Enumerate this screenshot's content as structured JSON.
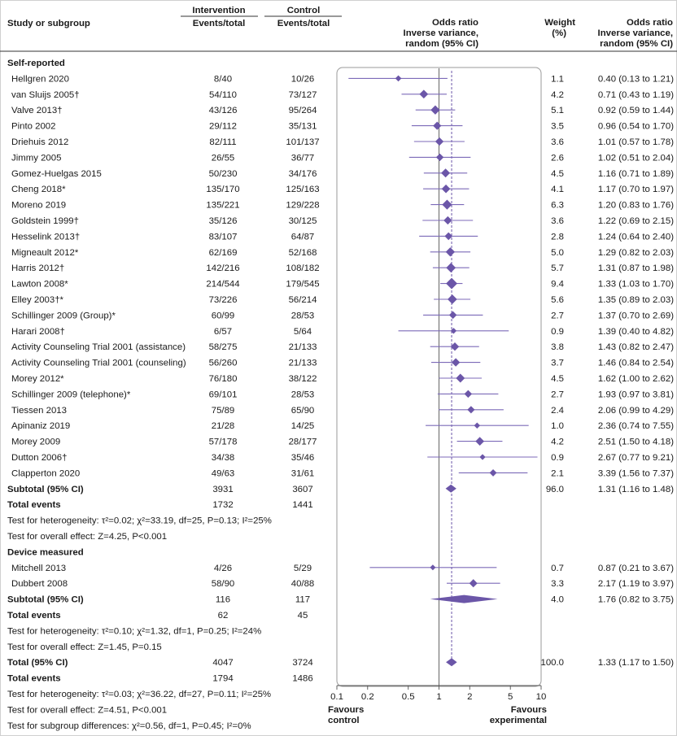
{
  "header": {
    "study": "Study or subgroup",
    "intervention": "Intervention",
    "intervention_sub": "Events/total",
    "control": "Control",
    "control_sub": "Events/total",
    "or_plot": [
      "Odds ratio",
      "Inverse variance,",
      "random (95% CI)"
    ],
    "weight": [
      "Weight",
      "(%)"
    ],
    "or_text": [
      "Odds ratio",
      "Inverse variance,",
      "random (95% CI)"
    ]
  },
  "axis": {
    "ticks": [
      "0.1",
      "0.2",
      "0.5",
      "1",
      "2",
      "5",
      "10"
    ],
    "favours_left": [
      "Favours",
      "control"
    ],
    "favours_right": [
      "Favours",
      "experimental"
    ]
  },
  "colors": {
    "mark": "#6b56a8",
    "line": "#7c6ab8",
    "frame": "#9a9a9a",
    "axis": "#555555"
  },
  "chart_data": {
    "type": "forest",
    "scale": "log",
    "xlim": [
      0.1,
      10
    ],
    "null_value": 1,
    "rows": [
      {
        "kind": "group",
        "label": "Self-reported"
      },
      {
        "kind": "study",
        "label": "Hellgren 2020",
        "int": "8/40",
        "ctl": "10/26",
        "or": 0.4,
        "lo": 0.13,
        "hi": 1.21,
        "w": "1.1",
        "ci": "0.40 (0.13 to 1.21)"
      },
      {
        "kind": "study",
        "label": "van Sluijs 2005†",
        "int": "54/110",
        "ctl": "73/127",
        "or": 0.71,
        "lo": 0.43,
        "hi": 1.19,
        "w": "4.2",
        "ci": "0.71 (0.43 to 1.19)"
      },
      {
        "kind": "study",
        "label": "Valve 2013†",
        "int": "43/126",
        "ctl": "95/264",
        "or": 0.92,
        "lo": 0.59,
        "hi": 1.44,
        "w": "5.1",
        "ci": "0.92 (0.59 to 1.44)"
      },
      {
        "kind": "study",
        "label": "Pinto 2002",
        "int": "29/112",
        "ctl": "35/131",
        "or": 0.96,
        "lo": 0.54,
        "hi": 1.7,
        "w": "3.5",
        "ci": "0.96 (0.54 to 1.70)"
      },
      {
        "kind": "study",
        "label": "Driehuis 2012",
        "int": "82/111",
        "ctl": "101/137",
        "or": 1.01,
        "lo": 0.57,
        "hi": 1.78,
        "w": "3.6",
        "ci": "1.01 (0.57 to 1.78)"
      },
      {
        "kind": "study",
        "label": "Jimmy 2005",
        "int": "26/55",
        "ctl": "36/77",
        "or": 1.02,
        "lo": 0.51,
        "hi": 2.04,
        "w": "2.6",
        "ci": "1.02 (0.51 to 2.04)"
      },
      {
        "kind": "study",
        "label": "Gomez-Huelgas 2015",
        "int": "50/230",
        "ctl": "34/176",
        "or": 1.16,
        "lo": 0.71,
        "hi": 1.89,
        "w": "4.5",
        "ci": "1.16 (0.71 to 1.89)"
      },
      {
        "kind": "study",
        "label": "Cheng 2018*",
        "int": "135/170",
        "ctl": "125/163",
        "or": 1.17,
        "lo": 0.7,
        "hi": 1.97,
        "w": "4.1",
        "ci": "1.17 (0.70 to 1.97)"
      },
      {
        "kind": "study",
        "label": "Moreno 2019",
        "int": "135/221",
        "ctl": "129/228",
        "or": 1.2,
        "lo": 0.83,
        "hi": 1.76,
        "w": "6.3",
        "ci": "1.20 (0.83 to 1.76)"
      },
      {
        "kind": "study",
        "label": "Goldstein 1999†",
        "int": "35/126",
        "ctl": "30/125",
        "or": 1.22,
        "lo": 0.69,
        "hi": 2.15,
        "w": "3.6",
        "ci": "1.22 (0.69 to 2.15)"
      },
      {
        "kind": "study",
        "label": "Hesselink 2013†",
        "int": "83/107",
        "ctl": "64/87",
        "or": 1.24,
        "lo": 0.64,
        "hi": 2.4,
        "w": "2.8",
        "ci": "1.24 (0.64 to 2.40)"
      },
      {
        "kind": "study",
        "label": "Migneault 2012*",
        "int": "62/169",
        "ctl": "52/168",
        "or": 1.29,
        "lo": 0.82,
        "hi": 2.03,
        "w": "5.0",
        "ci": "1.29 (0.82 to 2.03)"
      },
      {
        "kind": "study",
        "label": "Harris 2012†",
        "int": "142/216",
        "ctl": "108/182",
        "or": 1.31,
        "lo": 0.87,
        "hi": 1.98,
        "w": "5.7",
        "ci": "1.31 (0.87 to 1.98)"
      },
      {
        "kind": "study",
        "label": "Lawton 2008*",
        "int": "214/544",
        "ctl": "179/545",
        "or": 1.33,
        "lo": 1.03,
        "hi": 1.7,
        "w": "9.4",
        "ci": "1.33 (1.03 to 1.70)"
      },
      {
        "kind": "study",
        "label": "Elley 2003†*",
        "int": "73/226",
        "ctl": "56/214",
        "or": 1.35,
        "lo": 0.89,
        "hi": 2.03,
        "w": "5.6",
        "ci": "1.35 (0.89 to 2.03)"
      },
      {
        "kind": "study",
        "label": "Schillinger 2009 (Group)*",
        "int": "60/99",
        "ctl": "28/53",
        "or": 1.37,
        "lo": 0.7,
        "hi": 2.69,
        "w": "2.7",
        "ci": "1.37 (0.70 to 2.69)"
      },
      {
        "kind": "study",
        "label": "Harari 2008†",
        "int": "6/57",
        "ctl": "5/64",
        "or": 1.39,
        "lo": 0.4,
        "hi": 4.82,
        "w": "0.9",
        "ci": "1.39 (0.40 to 4.82)"
      },
      {
        "kind": "study",
        "label": "Activity Counseling Trial 2001 (assistance)",
        "int": "58/275",
        "ctl": "21/133",
        "or": 1.43,
        "lo": 0.82,
        "hi": 2.47,
        "w": "3.8",
        "ci": "1.43 (0.82 to 2.47)"
      },
      {
        "kind": "study",
        "label": "Activity Counseling Trial 2001 (counseling)",
        "int": "56/260",
        "ctl": "21/133",
        "or": 1.46,
        "lo": 0.84,
        "hi": 2.54,
        "w": "3.7",
        "ci": "1.46 (0.84 to 2.54)"
      },
      {
        "kind": "study",
        "label": "Morey 2012*",
        "int": "76/180",
        "ctl": "38/122",
        "or": 1.62,
        "lo": 1.0,
        "hi": 2.62,
        "w": "4.5",
        "ci": "1.62 (1.00 to 2.62)"
      },
      {
        "kind": "study",
        "label": "Schillinger 2009 (telephone)*",
        "int": "69/101",
        "ctl": "28/53",
        "or": 1.93,
        "lo": 0.97,
        "hi": 3.81,
        "w": "2.7",
        "ci": "1.93 (0.97 to 3.81)"
      },
      {
        "kind": "study",
        "label": "Tiessen 2013",
        "int": "75/89",
        "ctl": "65/90",
        "or": 2.06,
        "lo": 0.99,
        "hi": 4.29,
        "w": "2.4",
        "ci": "2.06 (0.99 to 4.29)"
      },
      {
        "kind": "study",
        "label": "Apinaniz 2019",
        "int": "21/28",
        "ctl": "14/25",
        "or": 2.36,
        "lo": 0.74,
        "hi": 7.55,
        "w": "1.0",
        "ci": "2.36 (0.74 to 7.55)"
      },
      {
        "kind": "study",
        "label": "Morey 2009",
        "int": "57/178",
        "ctl": "28/177",
        "or": 2.51,
        "lo": 1.5,
        "hi": 4.18,
        "w": "4.2",
        "ci": "2.51 (1.50 to 4.18)"
      },
      {
        "kind": "study",
        "label": "Dutton 2006†",
        "int": "34/38",
        "ctl": "35/46",
        "or": 2.67,
        "lo": 0.77,
        "hi": 9.21,
        "w": "0.9",
        "ci": "2.67 (0.77 to 9.21)"
      },
      {
        "kind": "study",
        "label": "Clapperton 2020",
        "int": "49/63",
        "ctl": "31/61",
        "or": 3.39,
        "lo": 1.56,
        "hi": 7.37,
        "w": "2.1",
        "ci": "3.39 (1.56 to 7.37)"
      },
      {
        "kind": "subtotal",
        "label": "Subtotal (95% CI)",
        "int": "3931",
        "ctl": "3607",
        "or": 1.31,
        "lo": 1.16,
        "hi": 1.48,
        "w": "96.0",
        "ci": "1.31 (1.16 to 1.48)"
      },
      {
        "kind": "events",
        "label": "Total events",
        "int": "1732",
        "ctl": "1441"
      },
      {
        "kind": "note",
        "label": "Test for heterogeneity: τ²=0.02; χ²=33.19, df=25, P=0.13; I²=25%"
      },
      {
        "kind": "note",
        "label": "Test for overall effect: Z=4.25, P<0.001"
      },
      {
        "kind": "group",
        "label": "Device measured"
      },
      {
        "kind": "study",
        "label": "Mitchell 2013",
        "int": "4/26",
        "ctl": "5/29",
        "or": 0.87,
        "lo": 0.21,
        "hi": 3.67,
        "w": "0.7",
        "ci": "0.87 (0.21 to 3.67)"
      },
      {
        "kind": "study",
        "label": "Dubbert 2008",
        "int": "58/90",
        "ctl": "40/88",
        "or": 2.17,
        "lo": 1.19,
        "hi": 3.97,
        "w": "3.3",
        "ci": "2.17 (1.19 to 3.97)"
      },
      {
        "kind": "subtotal",
        "label": "Subtotal (95% CI)",
        "int": "116",
        "ctl": "117",
        "or": 1.76,
        "lo": 0.82,
        "hi": 3.75,
        "w": "4.0",
        "ci": "1.76 (0.82 to 3.75)"
      },
      {
        "kind": "events",
        "label": "Total events",
        "int": "62",
        "ctl": "45"
      },
      {
        "kind": "note",
        "label": "Test for heterogeneity: τ²=0.10; χ²=1.32, df=1, P=0.25; I²=24%"
      },
      {
        "kind": "note",
        "label": "Test for overall effect: Z=1.45, P=0.15"
      },
      {
        "kind": "total",
        "label": "Total (95% CI)",
        "int": "4047",
        "ctl": "3724",
        "or": 1.33,
        "lo": 1.17,
        "hi": 1.5,
        "w": "100.0",
        "ci": "1.33 (1.17 to 1.50)"
      },
      {
        "kind": "events",
        "label": "Total events",
        "int": "1794",
        "ctl": "1486"
      },
      {
        "kind": "note",
        "label": "Test for heterogeneity: τ²=0.03; χ²=36.22, df=27, P=0.11; I²=25%"
      },
      {
        "kind": "note",
        "label": "Test for overall effect: Z=4.51, P<0.001"
      },
      {
        "kind": "note",
        "label": "Test for subgroup differences: χ²=0.56, df=1, P=0.45; I²=0%"
      }
    ]
  }
}
